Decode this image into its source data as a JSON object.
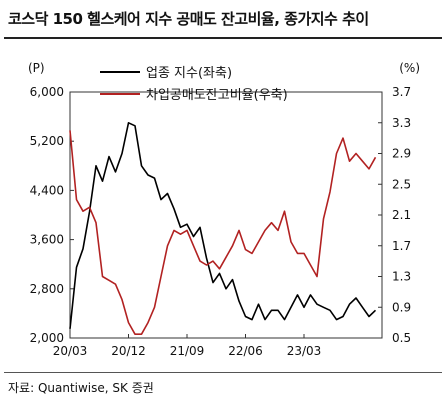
{
  "title": "코스닥 150 헬스케어 지수 공매도 잔고비율, 종가지수 추이",
  "source": "자료: Quantiwise, SK 증권",
  "chart_data": {
    "type": "line",
    "left_axis": {
      "unit": "(P)",
      "min": 2000,
      "max": 6000,
      "ticks": [
        2000,
        2800,
        3600,
        4400,
        5200,
        6000
      ],
      "tick_labels": [
        "2,000",
        "2,800",
        "3,600",
        "4,400",
        "5,200",
        "6,000"
      ]
    },
    "right_axis": {
      "unit": "(%)",
      "min": 0.5,
      "max": 3.7,
      "ticks": [
        0.5,
        0.9,
        1.3,
        1.7,
        2.1,
        2.5,
        2.9,
        3.3,
        3.7
      ],
      "tick_labels": [
        "0.5",
        "0.9",
        "1.3",
        "1.7",
        "2.1",
        "2.5",
        "2.9",
        "3.3",
        "3.7"
      ]
    },
    "x_axis": {
      "range": [
        "2020-03",
        "2024-03"
      ],
      "ticks": [
        "2020-03",
        "2020-12",
        "2021-09",
        "2022-06",
        "2023-03"
      ],
      "tick_labels": [
        "20/03",
        "20/12",
        "21/09",
        "22/06",
        "23/03"
      ]
    },
    "legend": {
      "placement": "top"
    },
    "series": [
      {
        "name": "업종 지수(좌축)",
        "axis": "left",
        "color": "#000000",
        "points": [
          [
            "2020-03",
            2150
          ],
          [
            "2020-04",
            3150
          ],
          [
            "2020-05",
            3450
          ],
          [
            "2020-06",
            4050
          ],
          [
            "2020-07",
            4800
          ],
          [
            "2020-08",
            4550
          ],
          [
            "2020-09",
            4950
          ],
          [
            "2020-10",
            4700
          ],
          [
            "2020-11",
            5000
          ],
          [
            "2020-12",
            5500
          ],
          [
            "2021-01",
            5450
          ],
          [
            "2021-02",
            4800
          ],
          [
            "2021-03",
            4650
          ],
          [
            "2021-04",
            4600
          ],
          [
            "2021-05",
            4250
          ],
          [
            "2021-06",
            4350
          ],
          [
            "2021-07",
            4100
          ],
          [
            "2021-08",
            3800
          ],
          [
            "2021-09",
            3850
          ],
          [
            "2021-10",
            3650
          ],
          [
            "2021-11",
            3800
          ],
          [
            "2021-12",
            3300
          ],
          [
            "2022-01",
            2900
          ],
          [
            "2022-02",
            3050
          ],
          [
            "2022-03",
            2800
          ],
          [
            "2022-04",
            2950
          ],
          [
            "2022-05",
            2600
          ],
          [
            "2022-06",
            2350
          ],
          [
            "2022-07",
            2300
          ],
          [
            "2022-08",
            2550
          ],
          [
            "2022-09",
            2300
          ],
          [
            "2022-10",
            2450
          ],
          [
            "2022-11",
            2450
          ],
          [
            "2022-12",
            2300
          ],
          [
            "2023-01",
            2500
          ],
          [
            "2023-02",
            2700
          ],
          [
            "2023-03",
            2500
          ],
          [
            "2023-04",
            2700
          ],
          [
            "2023-05",
            2550
          ],
          [
            "2023-06",
            2500
          ],
          [
            "2023-07",
            2450
          ],
          [
            "2023-08",
            2300
          ],
          [
            "2023-09",
            2350
          ],
          [
            "2023-10",
            2550
          ],
          [
            "2023-11",
            2650
          ],
          [
            "2023-12",
            2500
          ],
          [
            "2024-01",
            2350
          ],
          [
            "2024-02",
            2450
          ]
        ]
      },
      {
        "name": "차입공매도잔고비율(우축)",
        "axis": "right",
        "color": "#b22222",
        "points": [
          [
            "2020-03",
            3.2
          ],
          [
            "2020-04",
            2.3
          ],
          [
            "2020-05",
            2.15
          ],
          [
            "2020-06",
            2.2
          ],
          [
            "2020-07",
            2.0
          ],
          [
            "2020-08",
            1.3
          ],
          [
            "2020-09",
            1.25
          ],
          [
            "2020-10",
            1.2
          ],
          [
            "2020-11",
            1.0
          ],
          [
            "2020-12",
            0.7
          ],
          [
            "2021-01",
            0.55
          ],
          [
            "2021-02",
            0.55
          ],
          [
            "2021-03",
            0.7
          ],
          [
            "2021-04",
            0.9
          ],
          [
            "2021-05",
            1.3
          ],
          [
            "2021-06",
            1.7
          ],
          [
            "2021-07",
            1.9
          ],
          [
            "2021-08",
            1.85
          ],
          [
            "2021-09",
            1.9
          ],
          [
            "2021-10",
            1.7
          ],
          [
            "2021-11",
            1.5
          ],
          [
            "2021-12",
            1.45
          ],
          [
            "2022-01",
            1.5
          ],
          [
            "2022-02",
            1.4
          ],
          [
            "2022-03",
            1.55
          ],
          [
            "2022-04",
            1.7
          ],
          [
            "2022-05",
            1.9
          ],
          [
            "2022-06",
            1.65
          ],
          [
            "2022-07",
            1.6
          ],
          [
            "2022-08",
            1.75
          ],
          [
            "2022-09",
            1.9
          ],
          [
            "2022-10",
            2.0
          ],
          [
            "2022-11",
            1.9
          ],
          [
            "2022-12",
            2.15
          ],
          [
            "2023-01",
            1.75
          ],
          [
            "2023-02",
            1.6
          ],
          [
            "2023-03",
            1.6
          ],
          [
            "2023-04",
            1.45
          ],
          [
            "2023-05",
            1.3
          ],
          [
            "2023-06",
            2.05
          ],
          [
            "2023-07",
            2.4
          ],
          [
            "2023-08",
            2.9
          ],
          [
            "2023-09",
            3.1
          ],
          [
            "2023-10",
            2.8
          ],
          [
            "2023-11",
            2.9
          ],
          [
            "2023-12",
            2.8
          ],
          [
            "2024-01",
            2.7
          ],
          [
            "2024-02",
            2.85
          ]
        ]
      }
    ]
  }
}
